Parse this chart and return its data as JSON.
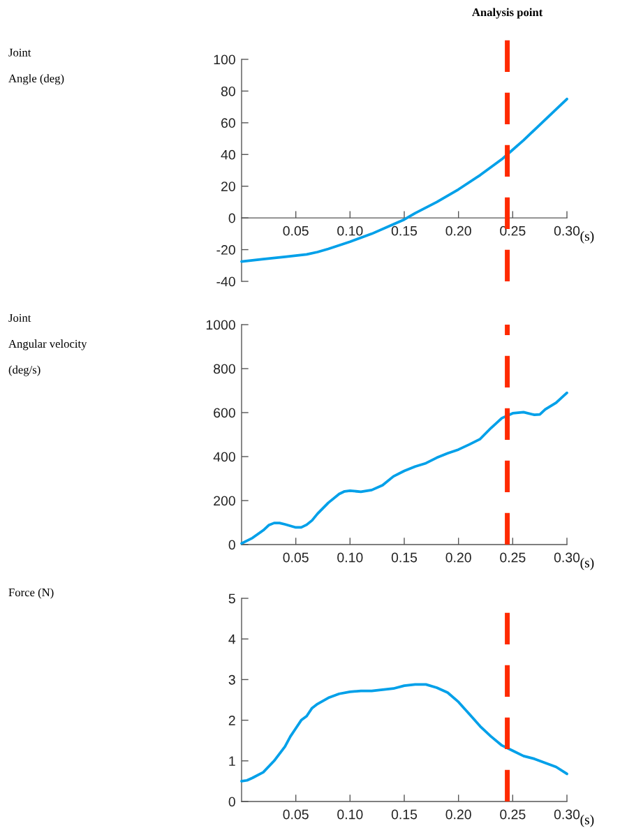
{
  "chart_data": [
    {
      "type": "line",
      "ylabel": "Joint\nAngle (deg)",
      "xlabel": "(s)",
      "xlim": [
        0,
        0.3
      ],
      "xticks": [
        0.05,
        {
          "value": 0.1,
          "label": "0.10"
        },
        0.15,
        {
          "value": 0.2,
          "label": "0.20"
        },
        0.25,
        {
          "value": 0.3,
          "label": "0.30"
        }
      ],
      "ylim": [
        -40,
        100
      ],
      "yticks": [
        -40,
        -20,
        0,
        20,
        40,
        60,
        80,
        100
      ],
      "ref_lines": [
        {
          "axis": "x",
          "value": 0.245,
          "label": "Analysis point",
          "color": "#ff2a00",
          "line_style": "dashed"
        }
      ],
      "series": [
        {
          "color": "#00a0e9",
          "x": [
            0,
            0.02,
            0.04,
            0.06,
            0.07,
            0.08,
            0.1,
            0.12,
            0.14,
            0.15,
            0.16,
            0.18,
            0.2,
            0.22,
            0.24,
            0.25,
            0.26,
            0.28,
            0.3
          ],
          "values": [
            -27.5,
            -26,
            -24.5,
            -23,
            -21.5,
            -19.5,
            -15,
            -10,
            -4,
            -1,
            3,
            10,
            18,
            27,
            37,
            43,
            49,
            62,
            75
          ]
        }
      ]
    },
    {
      "type": "line",
      "ylabel": "Joint\nAngular velocity\n(deg/s)",
      "xlabel": "(s)",
      "xlim": [
        0,
        0.3
      ],
      "xticks": [
        0.05,
        {
          "value": 0.1,
          "label": "0.10"
        },
        0.15,
        {
          "value": 0.2,
          "label": "0.20"
        },
        0.25,
        {
          "value": 0.3,
          "label": "0.30"
        }
      ],
      "ylim": [
        0,
        1000
      ],
      "yticks": [
        0,
        200,
        400,
        600,
        800,
        1000
      ],
      "ref_lines": [
        {
          "axis": "x",
          "value": 0.245,
          "color": "#ff2a00",
          "line_style": "dashed"
        }
      ],
      "series": [
        {
          "color": "#00a0e9",
          "x": [
            0,
            0.01,
            0.02,
            0.025,
            0.03,
            0.035,
            0.04,
            0.05,
            0.055,
            0.06,
            0.065,
            0.07,
            0.08,
            0.09,
            0.095,
            0.1,
            0.11,
            0.12,
            0.13,
            0.14,
            0.15,
            0.16,
            0.17,
            0.18,
            0.19,
            0.2,
            0.21,
            0.22,
            0.23,
            0.24,
            0.25,
            0.26,
            0.27,
            0.275,
            0.28,
            0.29,
            0.3
          ],
          "values": [
            5,
            30,
            65,
            88,
            98,
            98,
            92,
            78,
            78,
            90,
            110,
            140,
            190,
            230,
            242,
            245,
            240,
            248,
            270,
            310,
            335,
            355,
            370,
            395,
            415,
            432,
            455,
            480,
            530,
            575,
            597,
            602,
            590,
            592,
            615,
            645,
            690
          ]
        }
      ]
    },
    {
      "type": "line",
      "ylabel": "Force (N)",
      "xlabel": "(s)",
      "xlim": [
        0,
        0.3
      ],
      "xticks": [
        0.05,
        {
          "value": 0.1,
          "label": "0.10"
        },
        0.15,
        {
          "value": 0.2,
          "label": "0.20"
        },
        0.25,
        {
          "value": 0.3,
          "label": "0.30"
        }
      ],
      "ylim": [
        0,
        5
      ],
      "yticks": [
        0,
        1,
        2,
        3,
        4,
        5
      ],
      "ref_lines": [
        {
          "axis": "x",
          "value": 0.245,
          "color": "#ff2a00",
          "line_style": "dashed"
        }
      ],
      "series": [
        {
          "color": "#00a0e9",
          "x": [
            0,
            0.005,
            0.01,
            0.02,
            0.03,
            0.04,
            0.045,
            0.05,
            0.055,
            0.06,
            0.065,
            0.07,
            0.08,
            0.09,
            0.1,
            0.11,
            0.12,
            0.13,
            0.14,
            0.15,
            0.16,
            0.17,
            0.18,
            0.19,
            0.2,
            0.21,
            0.22,
            0.23,
            0.24,
            0.25,
            0.26,
            0.27,
            0.28,
            0.29,
            0.3
          ],
          "values": [
            0.5,
            0.52,
            0.58,
            0.72,
            1.0,
            1.35,
            1.6,
            1.8,
            2.0,
            2.1,
            2.3,
            2.4,
            2.55,
            2.65,
            2.7,
            2.72,
            2.72,
            2.75,
            2.78,
            2.85,
            2.88,
            2.88,
            2.8,
            2.68,
            2.45,
            2.15,
            1.85,
            1.6,
            1.38,
            1.25,
            1.12,
            1.05,
            0.95,
            0.85,
            0.68
          ]
        }
      ]
    }
  ]
}
